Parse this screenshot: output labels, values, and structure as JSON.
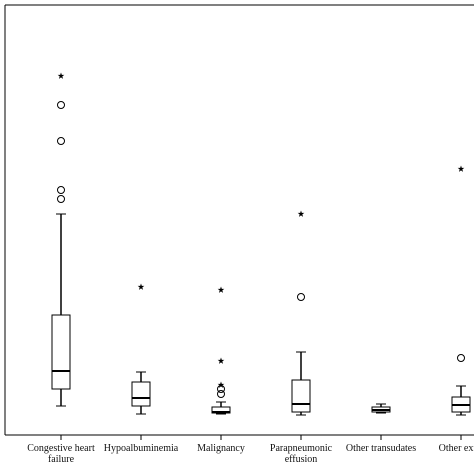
{
  "chart_data": {
    "type": "box",
    "categories": [
      "Congestive heart failure",
      "Hypoalbuminemia",
      "Malignancy",
      "Parapneumonic effusion",
      "Other transudates",
      "Other exud"
    ],
    "ylim": [
      0,
      430
    ],
    "boxes": [
      {
        "whisker_low": 29,
        "q1": 46,
        "median": 64,
        "q3": 120,
        "whisker_high": 221,
        "outliers": [
          236,
          245,
          294,
          330
        ],
        "extremes": [
          359
        ]
      },
      {
        "whisker_low": 21,
        "q1": 29,
        "median": 37,
        "q3": 53,
        "whisker_high": 63,
        "outliers": [],
        "extremes": [
          148
        ]
      },
      {
        "whisker_low": 21,
        "q1": 22,
        "median": 23,
        "q3": 28,
        "whisker_high": 33,
        "outliers": [
          41,
          46
        ],
        "extremes": [
          50,
          74,
          145
        ]
      },
      {
        "whisker_low": 20,
        "q1": 23,
        "median": 31,
        "q3": 55,
        "whisker_high": 83,
        "outliers": [
          138
        ],
        "extremes": [
          221
        ]
      },
      {
        "whisker_low": 22,
        "q1": 23,
        "median": 25,
        "q3": 28,
        "whisker_high": 31,
        "outliers": [],
        "extremes": []
      },
      {
        "whisker_low": 20,
        "q1": 23,
        "median": 30,
        "q3": 38,
        "whisker_high": 49,
        "outliers": [
          77
        ],
        "extremes": [
          266
        ]
      }
    ]
  }
}
